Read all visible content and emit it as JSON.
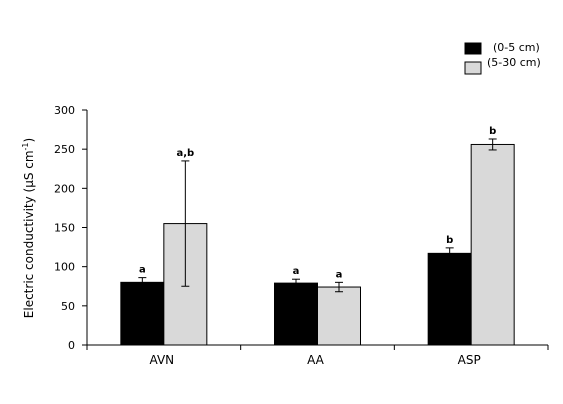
{
  "chart_data": {
    "type": "bar",
    "title": "",
    "xlabel": "",
    "ylabel_main": "Electric conductivity (µS cm",
    "ylabel_sup": "-1",
    "ylabel_close": ")",
    "categories": [
      "AVN",
      "AA",
      "ASP"
    ],
    "ylim": [
      0,
      300
    ],
    "yticks": [
      0,
      50,
      100,
      150,
      200,
      250,
      300
    ],
    "grid": false,
    "legend_position": "top-right",
    "series": [
      {
        "name": "(0-5 cm)",
        "color": "#000000",
        "values": [
          80,
          79,
          117
        ],
        "errors": [
          6,
          5,
          7
        ],
        "labels": [
          "a",
          "a",
          "b"
        ]
      },
      {
        "name": "(5-30 cm)",
        "color": "#d9d9d9",
        "values": [
          155,
          74,
          256
        ],
        "errors": [
          80,
          6,
          7
        ],
        "labels": [
          "a,b",
          "a",
          "b"
        ]
      }
    ]
  }
}
